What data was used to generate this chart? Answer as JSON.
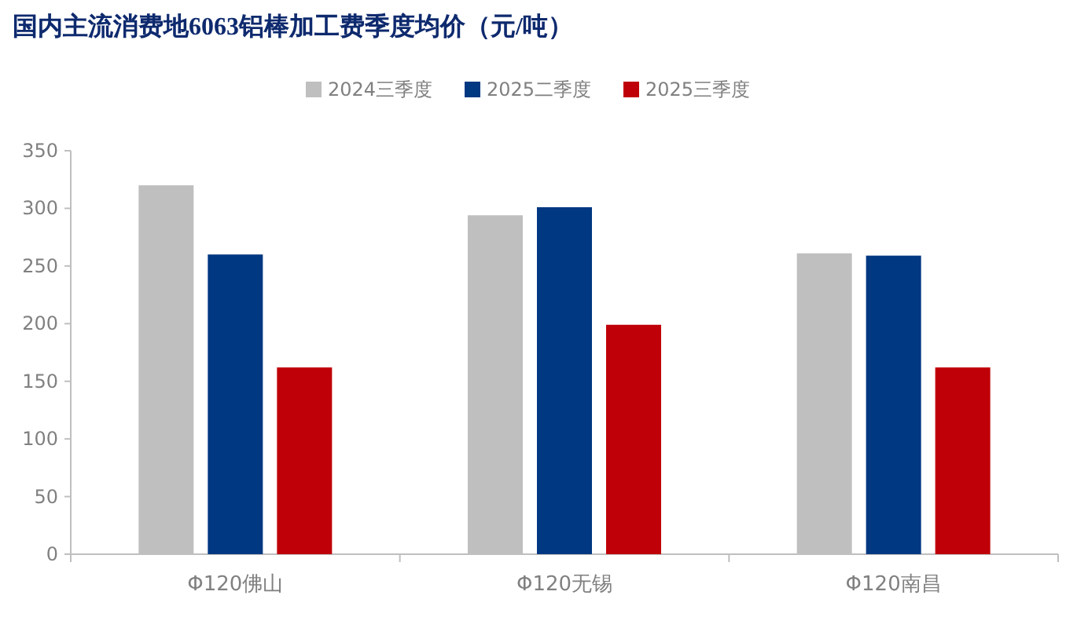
{
  "chart_data": {
    "type": "bar",
    "title": "国内主流消费地6063铝棒加工费季度均价（元/吨）",
    "categories": [
      "Φ120佛山",
      "Φ120无锡",
      "Φ120南昌"
    ],
    "series": [
      {
        "name": "2024三季度",
        "color": "#bfbfbf",
        "values": [
          320,
          294,
          261
        ]
      },
      {
        "name": "2025二季度",
        "color": "#003882",
        "values": [
          260,
          301,
          259
        ]
      },
      {
        "name": "2025三季度",
        "color": "#bf0008",
        "values": [
          162,
          199,
          162
        ]
      }
    ],
    "ylim": [
      0,
      350
    ],
    "yticks": [
      0,
      50,
      100,
      150,
      200,
      250,
      300,
      350
    ],
    "grid": false,
    "legend": "top"
  }
}
